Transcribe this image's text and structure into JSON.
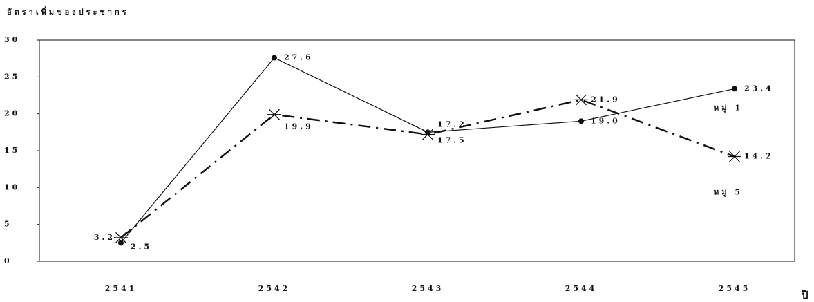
{
  "chart_data": {
    "type": "line",
    "y_label": "อัตราเพิ่มของประชากร",
    "x_label": "ปี",
    "categories": [
      "2541",
      "2542",
      "2543",
      "2544",
      "2545"
    ],
    "series": [
      {
        "name": "หมู่ 1",
        "color": "#111111",
        "style": "solid",
        "marker": "circle",
        "values": [
          2.5,
          27.6,
          17.5,
          19.0,
          23.4
        ],
        "value_labels": [
          "2.5",
          "27.6",
          "17.5",
          "19.0",
          "23.4"
        ]
      },
      {
        "name": "หมู่ 5",
        "color": "#111111",
        "style": "dashdot",
        "marker": "star",
        "values": [
          3.2,
          19.9,
          17.2,
          21.9,
          14.2
        ],
        "value_labels": [
          "3.2",
          "19.9",
          "17.2",
          "21.9",
          "14.2"
        ]
      }
    ],
    "ylim": [
      0,
      30
    ],
    "yticks": [
      0,
      5,
      10,
      15,
      20,
      25,
      30
    ],
    "grid": false
  }
}
